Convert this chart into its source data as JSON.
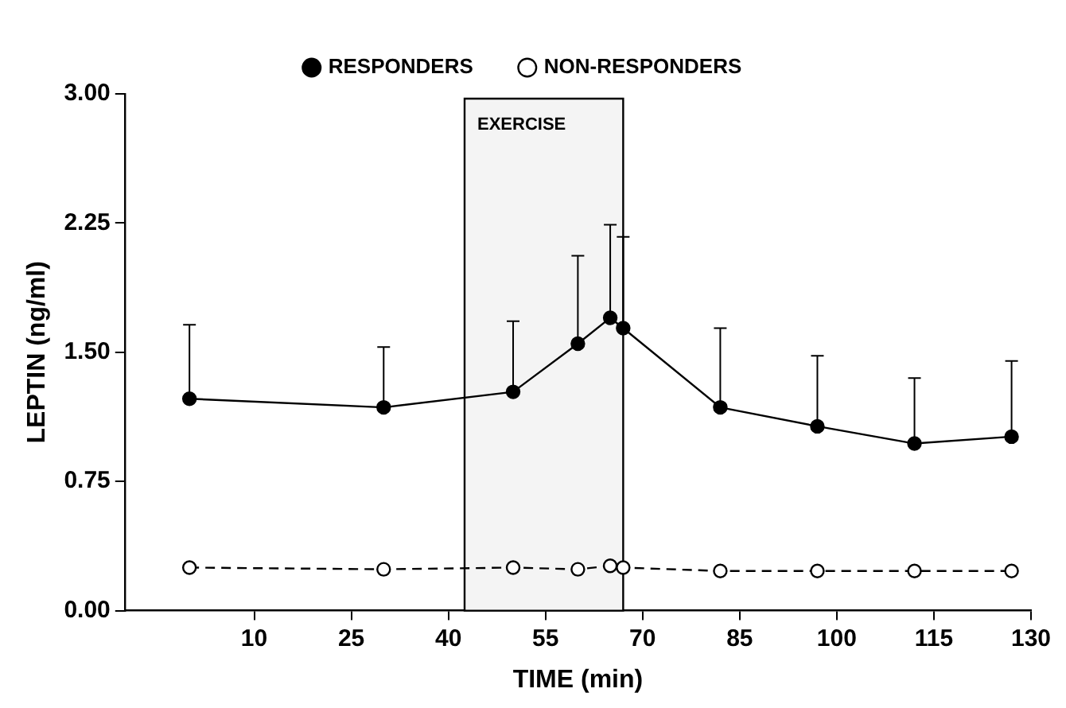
{
  "chart_data": {
    "type": "line",
    "xlabel": "TIME (min)",
    "ylabel": "LEPTIN (ng/ml)",
    "x": [
      0,
      30,
      50,
      60,
      65,
      67,
      82,
      97,
      112,
      127
    ],
    "series": [
      {
        "name": "RESPONDERS",
        "color": "#000000",
        "marker": "circle",
        "line_style": "solid",
        "values": [
          1.23,
          1.18,
          1.27,
          1.55,
          1.7,
          1.64,
          1.18,
          1.07,
          0.97,
          1.01
        ],
        "errors": [
          [
            1.23,
            1.66
          ],
          [
            1.18,
            1.53
          ],
          [
            1.27,
            1.68
          ],
          [
            1.55,
            2.06
          ],
          [
            1.7,
            2.24
          ],
          [
            1.64,
            2.17
          ],
          [
            1.18,
            1.64
          ],
          [
            1.07,
            1.48
          ],
          [
            0.97,
            1.35
          ],
          [
            1.01,
            1.45
          ]
        ]
      },
      {
        "name": "NON-RESPONDERS",
        "color": "#000000",
        "marker": "circle",
        "line_style": "dashed",
        "values": [
          0.25,
          0.24,
          0.25,
          0.24,
          0.26,
          0.25,
          0.23,
          0.23,
          0.23,
          0.23
        ]
      }
    ],
    "xlim": [
      -10,
      130
    ],
    "xticks": [
      10,
      25,
      40,
      55,
      70,
      85,
      100,
      115,
      130
    ],
    "ylim": [
      0,
      3
    ],
    "yticks": [
      {
        "value": 0,
        "label": "0.00"
      },
      {
        "value": 0.75,
        "label": "0.75"
      },
      {
        "value": 1.5,
        "label": "1.50"
      },
      {
        "value": 2.25,
        "label": "2.25"
      },
      {
        "value": 3,
        "label": "3.00"
      }
    ],
    "bands": [
      {
        "axis": "x",
        "from": 42.5,
        "to": 67,
        "label": "EXERCISE",
        "color": "#f4f4f4"
      }
    ],
    "grid": false,
    "legend": "top"
  }
}
